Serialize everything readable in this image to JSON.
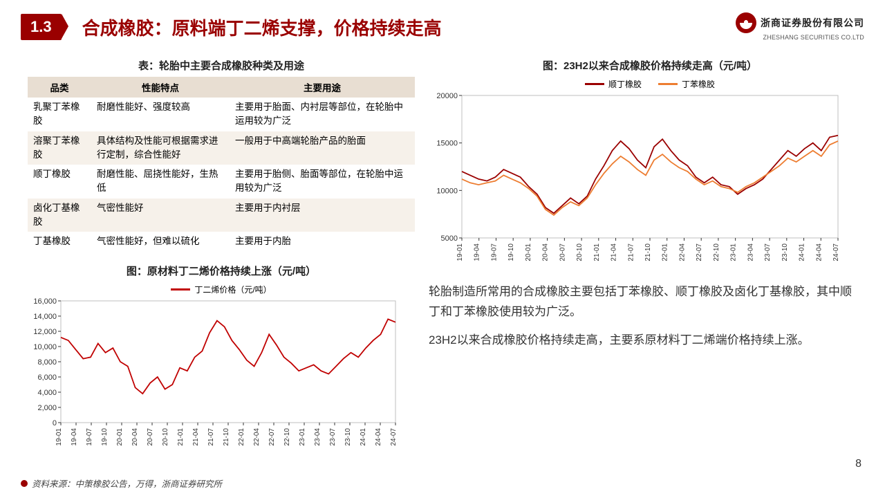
{
  "header": {
    "section": "1.3",
    "title": "合成橡胶：原料端丁二烯支撑，价格持续走高"
  },
  "logo": {
    "cn": "浙商证券股份有限公司",
    "en": "ZHESHANG SECURITIES CO.LTD"
  },
  "table": {
    "caption": "表：轮胎中主要合成橡胶种类及用途",
    "columns": [
      "品类",
      "性能特点",
      "主要用途"
    ],
    "rows": [
      [
        "乳聚丁苯橡胶",
        "耐磨性能好、强度较高",
        "主要用于胎面、内衬层等部位，在轮胎中运用较为广泛"
      ],
      [
        "溶聚丁苯橡胶",
        "具体结构及性能可根据需求进行定制，综合性能好",
        "一般用于中高端轮胎产品的胎面"
      ],
      [
        "顺丁橡胶",
        "耐磨性能、屈挠性能好，生热低",
        "主要用于胎侧、胎面等部位，在轮胎中运用较为广泛"
      ],
      [
        "卤化丁基橡胶",
        "气密性能好",
        "主要用于内衬层"
      ],
      [
        "丁基橡胶",
        "气密性能好，但难以硫化",
        "主要用于内胎"
      ]
    ]
  },
  "chart_bdn": {
    "caption": "图：原材料丁二烯价格持续上涨（元/吨）",
    "type": "line",
    "legend_label": "丁二烯价格（元/吨）",
    "legend_color": "#c00000",
    "line_color": "#c00000",
    "line_width": 1.8,
    "background_color": "#ffffff",
    "border_color": "#bfbfbf",
    "ylim": [
      0,
      16000
    ],
    "ytick_step": 2000,
    "yticks": [
      "0",
      "2,000",
      "4,000",
      "6,000",
      "8,000",
      "10,000",
      "12,000",
      "14,000",
      "16,000"
    ],
    "x_labels": [
      "19-01",
      "19-04",
      "19-07",
      "19-10",
      "20-01",
      "20-04",
      "20-07",
      "20-10",
      "21-01",
      "21-04",
      "21-07",
      "21-10",
      "22-01",
      "22-04",
      "22-07",
      "22-10",
      "23-01",
      "23-04",
      "23-07",
      "23-10",
      "24-01",
      "24-04",
      "24-07"
    ],
    "series": [
      11200,
      10800,
      9600,
      8400,
      8600,
      10400,
      9200,
      9800,
      8000,
      7400,
      4600,
      3800,
      5200,
      6000,
      4400,
      5000,
      7200,
      6800,
      8600,
      9400,
      11800,
      13400,
      12600,
      10800,
      9600,
      8200,
      7400,
      9200,
      11600,
      10200,
      8600,
      7800,
      6800,
      7200,
      7600,
      6800,
      6400,
      7400,
      8400,
      9200,
      8600,
      9800,
      10800,
      11600,
      13600,
      13200
    ]
  },
  "chart_sbr": {
    "caption": "图：23H2以来合成橡胶价格持续走高（元/吨）",
    "type": "line",
    "legend": [
      {
        "label": "顺丁橡胶",
        "color": "#9a0000"
      },
      {
        "label": "丁苯橡胶",
        "color": "#ed7d31"
      }
    ],
    "line_width": 1.8,
    "background_color": "#ffffff",
    "border_color": "#bfbfbf",
    "ylim": [
      5000,
      20000
    ],
    "ytick_step": 5000,
    "yticks": [
      "5000",
      "10000",
      "15000",
      "20000"
    ],
    "x_labels": [
      "19-01",
      "19-04",
      "19-07",
      "19-10",
      "20-01",
      "20-04",
      "20-07",
      "20-10",
      "21-01",
      "21-04",
      "21-07",
      "21-10",
      "22-01",
      "22-04",
      "22-07",
      "22-10",
      "23-01",
      "23-04",
      "23-07",
      "23-10",
      "24-01",
      "24-04",
      "24-07"
    ],
    "series_a": [
      12000,
      11600,
      11200,
      11000,
      11400,
      12200,
      11800,
      11400,
      10400,
      9600,
      8200,
      7600,
      8400,
      9200,
      8600,
      9400,
      11200,
      12600,
      14200,
      15200,
      14400,
      13200,
      12400,
      14600,
      15400,
      14200,
      13200,
      12600,
      11400,
      10800,
      11400,
      10600,
      10400,
      9600,
      10200,
      10600,
      11200,
      12200,
      13200,
      14200,
      13600,
      14400,
      15000,
      14200,
      15600,
      15800
    ],
    "series_b": [
      11200,
      10800,
      10600,
      10800,
      11000,
      11600,
      11200,
      10800,
      10200,
      9400,
      8000,
      7400,
      8200,
      8800,
      8400,
      9200,
      10600,
      11800,
      12800,
      13600,
      13000,
      12200,
      11600,
      13200,
      13800,
      13000,
      12400,
      12000,
      11200,
      10600,
      11000,
      10400,
      10200,
      9800,
      10400,
      10800,
      11400,
      12000,
      12600,
      13400,
      13000,
      13600,
      14200,
      13600,
      14800,
      15200
    ]
  },
  "body": {
    "p1": "轮胎制造所常用的合成橡胶主要包括丁苯橡胶、顺丁橡胶及卤化丁基橡胶，其中顺丁和丁苯橡胶使用较为广泛。",
    "p2": "23H2以来合成橡胶价格持续走高，主要系原材料丁二烯端价格持续上涨。"
  },
  "footer": "资料来源：中策橡胶公告，万得，浙商证券研究所",
  "page": "8"
}
